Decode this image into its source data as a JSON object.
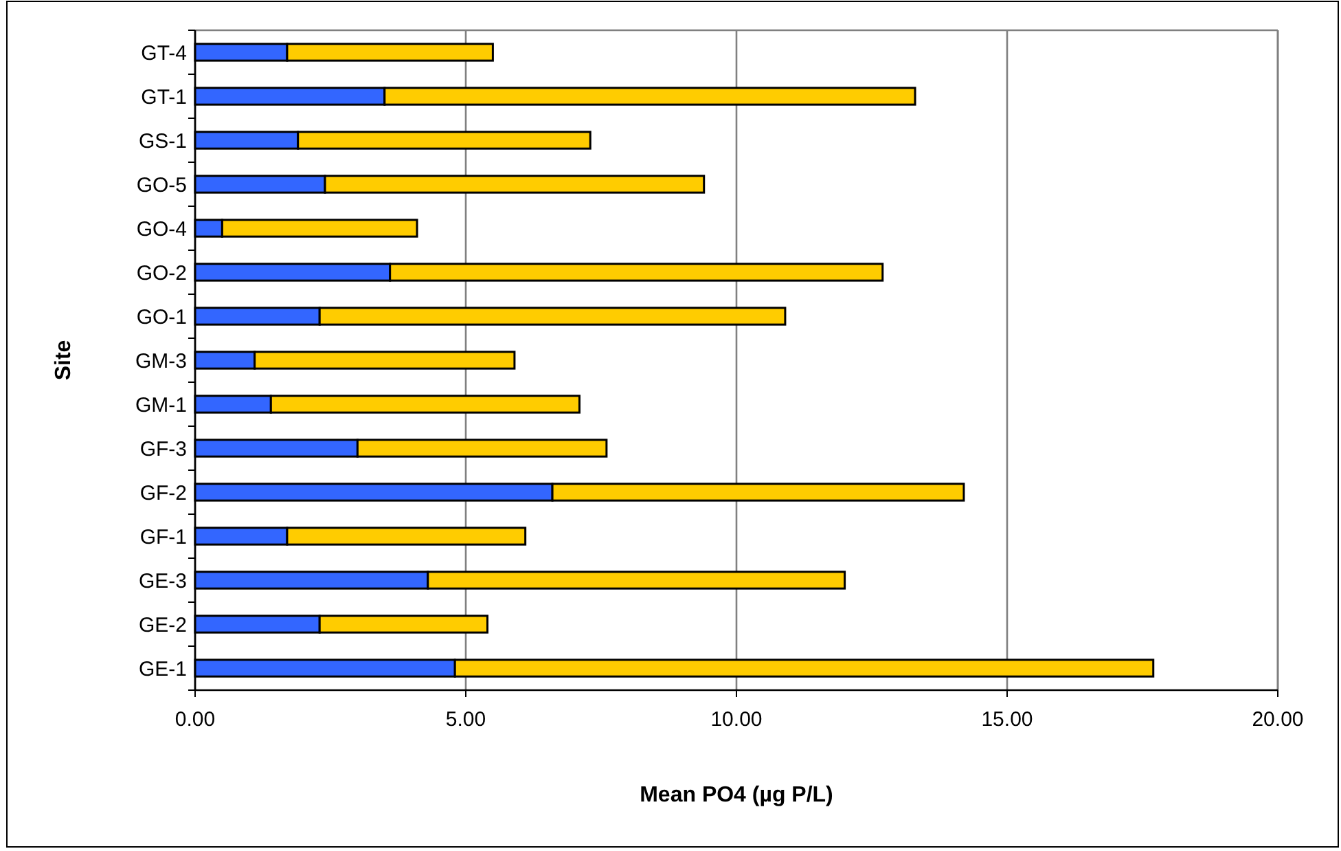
{
  "chart_data": {
    "type": "bar",
    "orientation": "horizontal",
    "stacked": true,
    "xlabel": "Mean PO4 (µg P/L)",
    "ylabel": "Site",
    "categories": [
      "GT-4",
      "GT-1",
      "GS-1",
      "GO-5",
      "GO-4",
      "GO-2",
      "GO-1",
      "GM-3",
      "GM-1",
      "GF-3",
      "GF-2",
      "GF-1",
      "GE-3",
      "GE-2",
      "GE-1"
    ],
    "series": [
      {
        "color": "#3366ff",
        "values": [
          1.7,
          3.5,
          1.9,
          2.4,
          0.5,
          3.6,
          2.3,
          1.1,
          1.4,
          3.0,
          6.6,
          1.7,
          4.3,
          2.3,
          4.8
        ]
      },
      {
        "color": "#ffcc00",
        "values": [
          3.8,
          9.8,
          5.4,
          7.0,
          3.6,
          9.1,
          8.6,
          4.8,
          5.7,
          4.6,
          7.6,
          4.4,
          7.7,
          3.1,
          12.9
        ]
      }
    ],
    "xlim": [
      0,
      20
    ],
    "xticks": [
      {
        "value": 0,
        "label": "0.00"
      },
      {
        "value": 5,
        "label": "5.00"
      },
      {
        "value": 10,
        "label": "10.00"
      },
      {
        "value": 15,
        "label": "15.00"
      },
      {
        "value": 20,
        "label": "20.00"
      }
    ],
    "grid": "x"
  }
}
